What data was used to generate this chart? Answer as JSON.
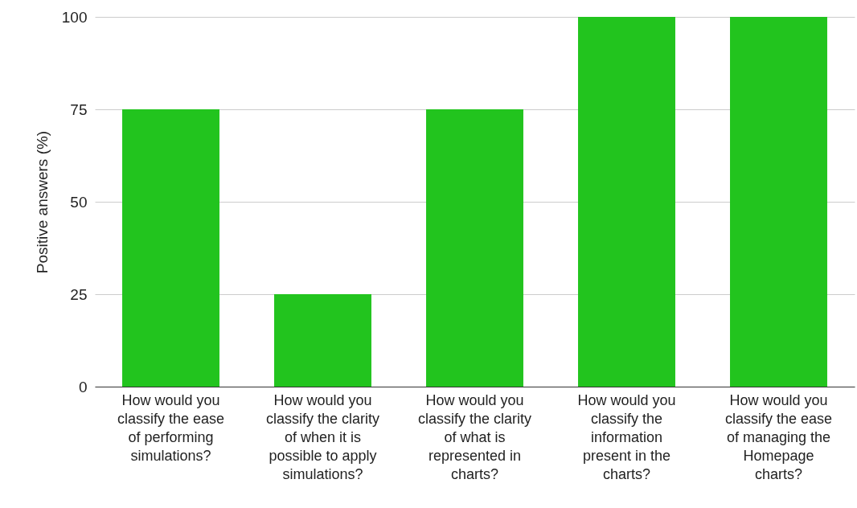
{
  "chart_data": {
    "type": "bar",
    "ylabel": "Positive answers (%)",
    "categories": [
      "How would you classify the ease of performing simulations?",
      "How would you classify the clarity of when it is possible to apply simulations?",
      "How would you classify the clarity of what is represented in charts?",
      "How would you classify the information present in the charts?",
      "How would you classify the ease of managing the Homepage charts?"
    ],
    "values": [
      75,
      25,
      75,
      100,
      100
    ],
    "color": "#22c41e",
    "ylim": [
      0,
      100
    ],
    "yticks": [
      0,
      25,
      50,
      75,
      100
    ],
    "grid": "y"
  }
}
